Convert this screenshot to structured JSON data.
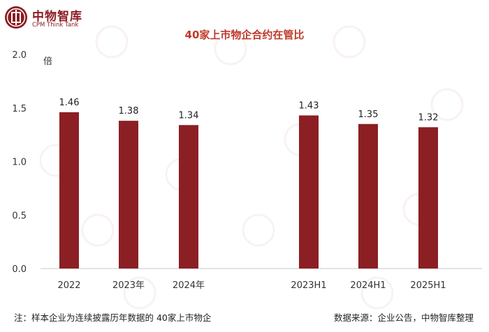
{
  "logo": {
    "name_cn": "中物智库",
    "name_en": "CPM Think Tank"
  },
  "footnote": "注：样本企业为连续披露历年数据的 40家上市物企",
  "source": "数据来源：企业公告，中物智库整理",
  "chart_data": {
    "type": "bar",
    "title": "40家上市物企合约在管比",
    "ylabel": "倍",
    "xlabel": "",
    "ylim": [
      0,
      2.0
    ],
    "yticks": [
      "0.0",
      "0.5",
      "1.0",
      "1.5",
      "2.0"
    ],
    "grid": false,
    "bar_color": "#8b1f24",
    "title_color": "#c0392b",
    "categories": [
      "2022",
      "2023年",
      "2024年",
      "2023H1",
      "2024H1",
      "2025H1"
    ],
    "values": [
      1.46,
      1.38,
      1.34,
      1.43,
      1.35,
      1.32
    ],
    "data_labels": [
      "1.46",
      "1.38",
      "1.34",
      "1.43",
      "1.35",
      "1.32"
    ]
  }
}
